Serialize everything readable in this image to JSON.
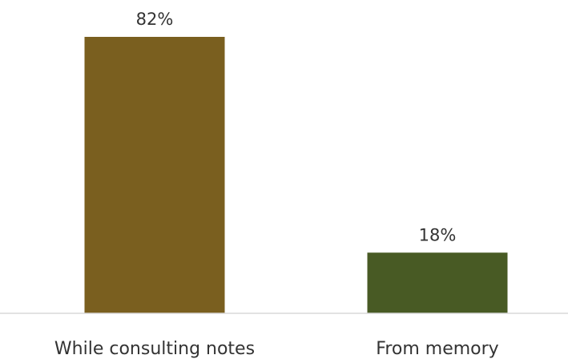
{
  "chart_data": {
    "type": "bar",
    "categories": [
      "While consulting notes",
      "From memory"
    ],
    "values": [
      82,
      18
    ],
    "value_labels": [
      "82%",
      "18%"
    ],
    "unit": "%",
    "colors": [
      "#7a5f1f",
      "#485a24"
    ],
    "axis_color": "#d9d9d9",
    "ylim": [
      0,
      82
    ],
    "grid": false,
    "legend": "none"
  }
}
